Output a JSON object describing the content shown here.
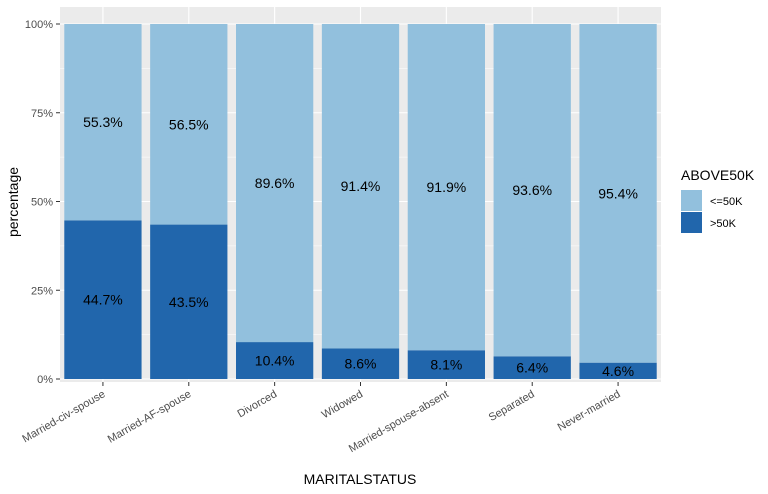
{
  "chart_data": {
    "type": "bar",
    "stacked": true,
    "xlabel": "MARITALSTATUS",
    "ylabel": "percentage",
    "ylim": [
      0,
      1
    ],
    "yticks": [
      "0%",
      "25%",
      "50%",
      "75%",
      "100%"
    ],
    "categories": [
      "Married-civ-spouse",
      "Married-AF-spouse",
      "Divorced",
      "Widowed",
      "Married-spouse-absent",
      "Separated",
      "Never-married"
    ],
    "series": [
      {
        "name": ">50K",
        "color": "#2166ac",
        "values": [
          0.447,
          0.435,
          0.104,
          0.086,
          0.081,
          0.064,
          0.046
        ],
        "labels": [
          "44.7%",
          "43.5%",
          "10.4%",
          "8.6%",
          "8.1%",
          "6.4%",
          "4.6%"
        ]
      },
      {
        "name": "<=50K",
        "color": "#92c0dd",
        "values": [
          0.553,
          0.565,
          0.896,
          0.914,
          0.919,
          0.936,
          0.954
        ],
        "labels": [
          "55.3%",
          "56.5%",
          "89.6%",
          "91.4%",
          "91.9%",
          "93.6%",
          "95.4%"
        ]
      }
    ],
    "legend": {
      "title": "ABOVE50K",
      "position": "right",
      "order": [
        "<=50K",
        ">50K"
      ]
    },
    "grid": true,
    "panel_background": "#ebebeb"
  }
}
